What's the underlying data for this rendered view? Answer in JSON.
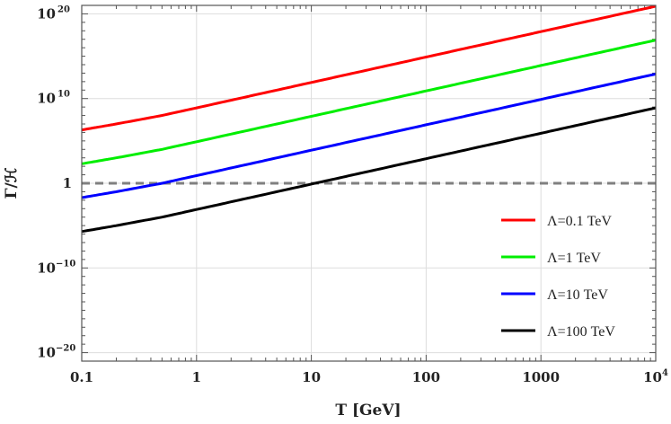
{
  "chart_data": {
    "type": "line",
    "title": "",
    "xlabel": "T [GeV]",
    "ylabel": "Γ/ℋ",
    "xscale": "log",
    "yscale": "log",
    "xlim": [
      0.1,
      10000
    ],
    "ylim": [
      1e-21,
      1e+21
    ],
    "grid": true,
    "legend_position": "bottom-right",
    "x_ticks": [
      {
        "value": 0.1,
        "label": "0.1"
      },
      {
        "value": 1,
        "label": "1"
      },
      {
        "value": 10,
        "label": "10"
      },
      {
        "value": 100,
        "label": "100"
      },
      {
        "value": 1000,
        "label": "1000"
      },
      {
        "value": 10000,
        "label": "10",
        "sup": "4"
      }
    ],
    "y_ticks": [
      {
        "value": 1e+20,
        "label": "10",
        "sup": "20"
      },
      {
        "value": 10000000000.0,
        "label": "10",
        "sup": "10"
      },
      {
        "value": 1,
        "label": "1",
        "sup": ""
      },
      {
        "value": 1e-10,
        "label": "10",
        "sup": "−10"
      },
      {
        "value": 1e-20,
        "label": "10",
        "sup": "−20"
      }
    ],
    "x": [
      0.1,
      0.2,
      0.5,
      1,
      10,
      100,
      1000,
      10000
    ],
    "series": [
      {
        "name": "Λ=0.1 TeV",
        "color": "#ff0000",
        "log10_values": [
          6.3,
          7.0,
          8.0,
          8.9,
          11.9,
          14.9,
          17.9,
          20.9
        ]
      },
      {
        "name": "Λ=1 TeV",
        "color": "#00ee00",
        "log10_values": [
          2.3,
          3.0,
          4.0,
          4.9,
          7.9,
          10.9,
          13.9,
          16.9
        ]
      },
      {
        "name": "Λ=10 TeV",
        "color": "#0000ff",
        "log10_values": [
          -1.7,
          -1.0,
          0.0,
          0.9,
          3.9,
          6.9,
          9.9,
          12.9
        ]
      },
      {
        "name": "Λ=100 TeV",
        "color": "#000000",
        "log10_values": [
          -5.7,
          -5.0,
          -4.0,
          -3.1,
          -0.1,
          2.9,
          5.9,
          8.9
        ]
      }
    ],
    "reference_line": {
      "y": 1,
      "style": "dashed",
      "color": "#808080"
    }
  }
}
